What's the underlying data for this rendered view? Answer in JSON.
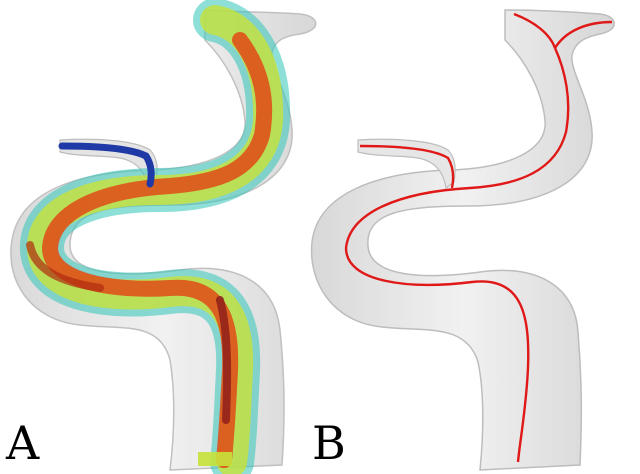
{
  "panels": [
    {
      "label": "A",
      "content": "velocity-streamline-rendering"
    },
    {
      "label": "B",
      "content": "vessel-centerline"
    }
  ],
  "colors": {
    "vessel_fill": "#e9e9e9",
    "vessel_edge": "#b9b9b9",
    "centerline": "#e01818",
    "flow_low": "#1f3aa6",
    "flow_mid": "#2fc4b8",
    "flow_mid2": "#c8e23a",
    "flow_high": "#e14a16",
    "flow_peak": "#8a1a1a"
  }
}
